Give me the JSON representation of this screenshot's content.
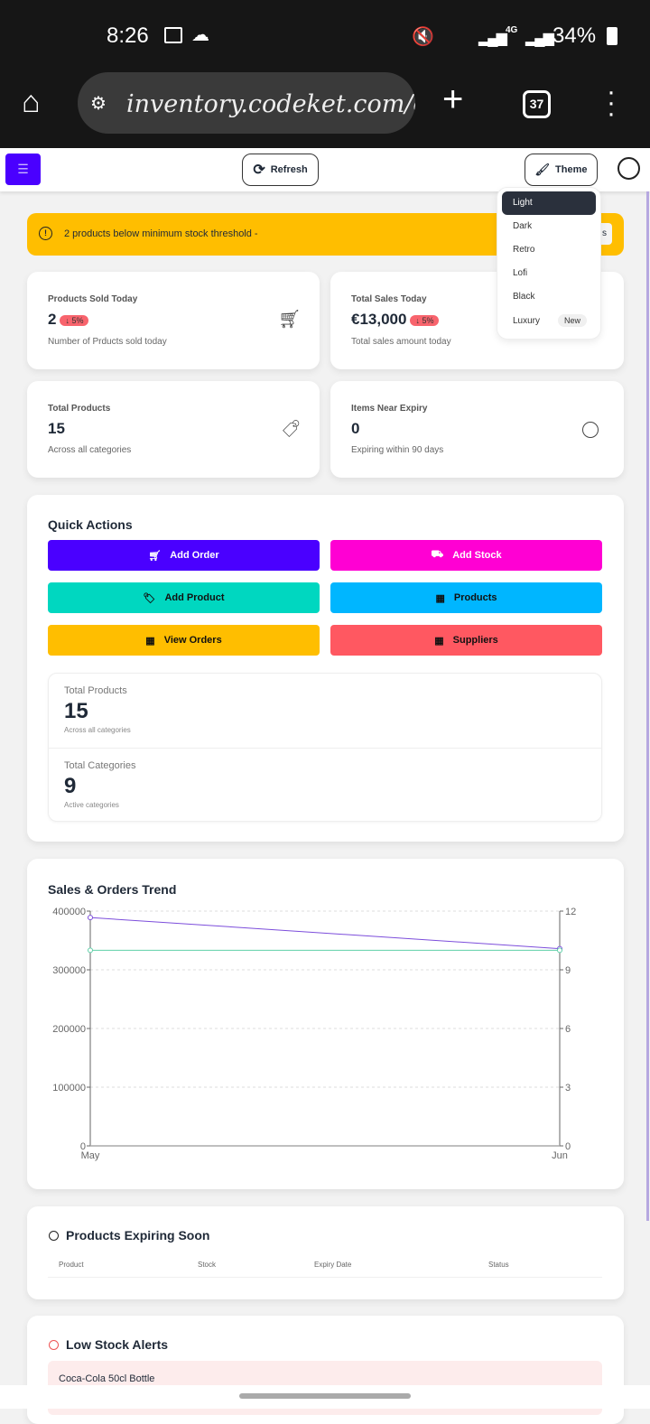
{
  "status_bar": {
    "time": "8:26",
    "network": "4G",
    "battery": "34%"
  },
  "browser": {
    "url": "inventory.codeket.com/c",
    "tab_count": "37"
  },
  "header": {
    "refresh_label": "Refresh",
    "theme_label": "Theme"
  },
  "theme_menu": {
    "items": [
      {
        "label": "Light",
        "selected": true
      },
      {
        "label": "Dark"
      },
      {
        "label": "Retro"
      },
      {
        "label": "Lofi"
      },
      {
        "label": "Black"
      },
      {
        "label": "Luxury",
        "badge": "New"
      }
    ]
  },
  "alert": {
    "text": "2 products below minimum stock threshold -",
    "button_partial": "s"
  },
  "stats": [
    {
      "label": "Products Sold Today",
      "value": "2",
      "change": "↓ 5%",
      "sub": "Number of Prducts sold today"
    },
    {
      "label": "Total Sales Today",
      "value": "€13,000",
      "change": "↓ 5%",
      "sub": "Total sales amount today"
    },
    {
      "label": "Total Products",
      "value": "15",
      "sub": "Across all categories"
    },
    {
      "label": "Items Near Expiry",
      "value": "0",
      "sub": "Expiring within 90 days"
    }
  ],
  "quick_actions": {
    "title": "Quick Actions",
    "buttons": [
      {
        "label": "Add Order",
        "color": "#4a00ff"
      },
      {
        "label": "Add Stock",
        "color": "#ff00d3"
      },
      {
        "label": "Add Product",
        "color": "#00d7c0"
      },
      {
        "label": "Products",
        "color": "#00b6ff"
      },
      {
        "label": "View Orders",
        "color": "#ffbe00"
      },
      {
        "label": "Suppliers",
        "color": "#ff5861"
      }
    ],
    "summary": [
      {
        "label": "Total Products",
        "value": "15",
        "sub": "Across all categories"
      },
      {
        "label": "Total Categories",
        "value": "9",
        "sub": "Active categories"
      }
    ]
  },
  "chart_data": {
    "type": "line",
    "title": "Sales & Orders Trend",
    "categories": [
      "May",
      "Jun"
    ],
    "series": [
      {
        "name": "Sales",
        "axis": "left",
        "color": "#7c4ddb",
        "values": [
          389000,
          336000
        ]
      },
      {
        "name": "Orders",
        "axis": "right",
        "color": "#5fd0a8",
        "values": [
          10,
          10
        ]
      }
    ],
    "left_ticks": [
      "0",
      "100000",
      "200000",
      "300000",
      "400000"
    ],
    "right_ticks": [
      "0",
      "3",
      "6",
      "9",
      "12"
    ],
    "ylim_left": [
      0,
      400000
    ],
    "ylim_right": [
      0,
      12
    ],
    "grid": true
  },
  "expiring": {
    "title": "Products Expiring Soon",
    "columns": [
      "Product",
      "Stock",
      "Expiry Date",
      "Status"
    ]
  },
  "low_stock": {
    "title": "Low Stock Alerts",
    "items": [
      "Coca-Cola 50cl Bottle"
    ]
  }
}
